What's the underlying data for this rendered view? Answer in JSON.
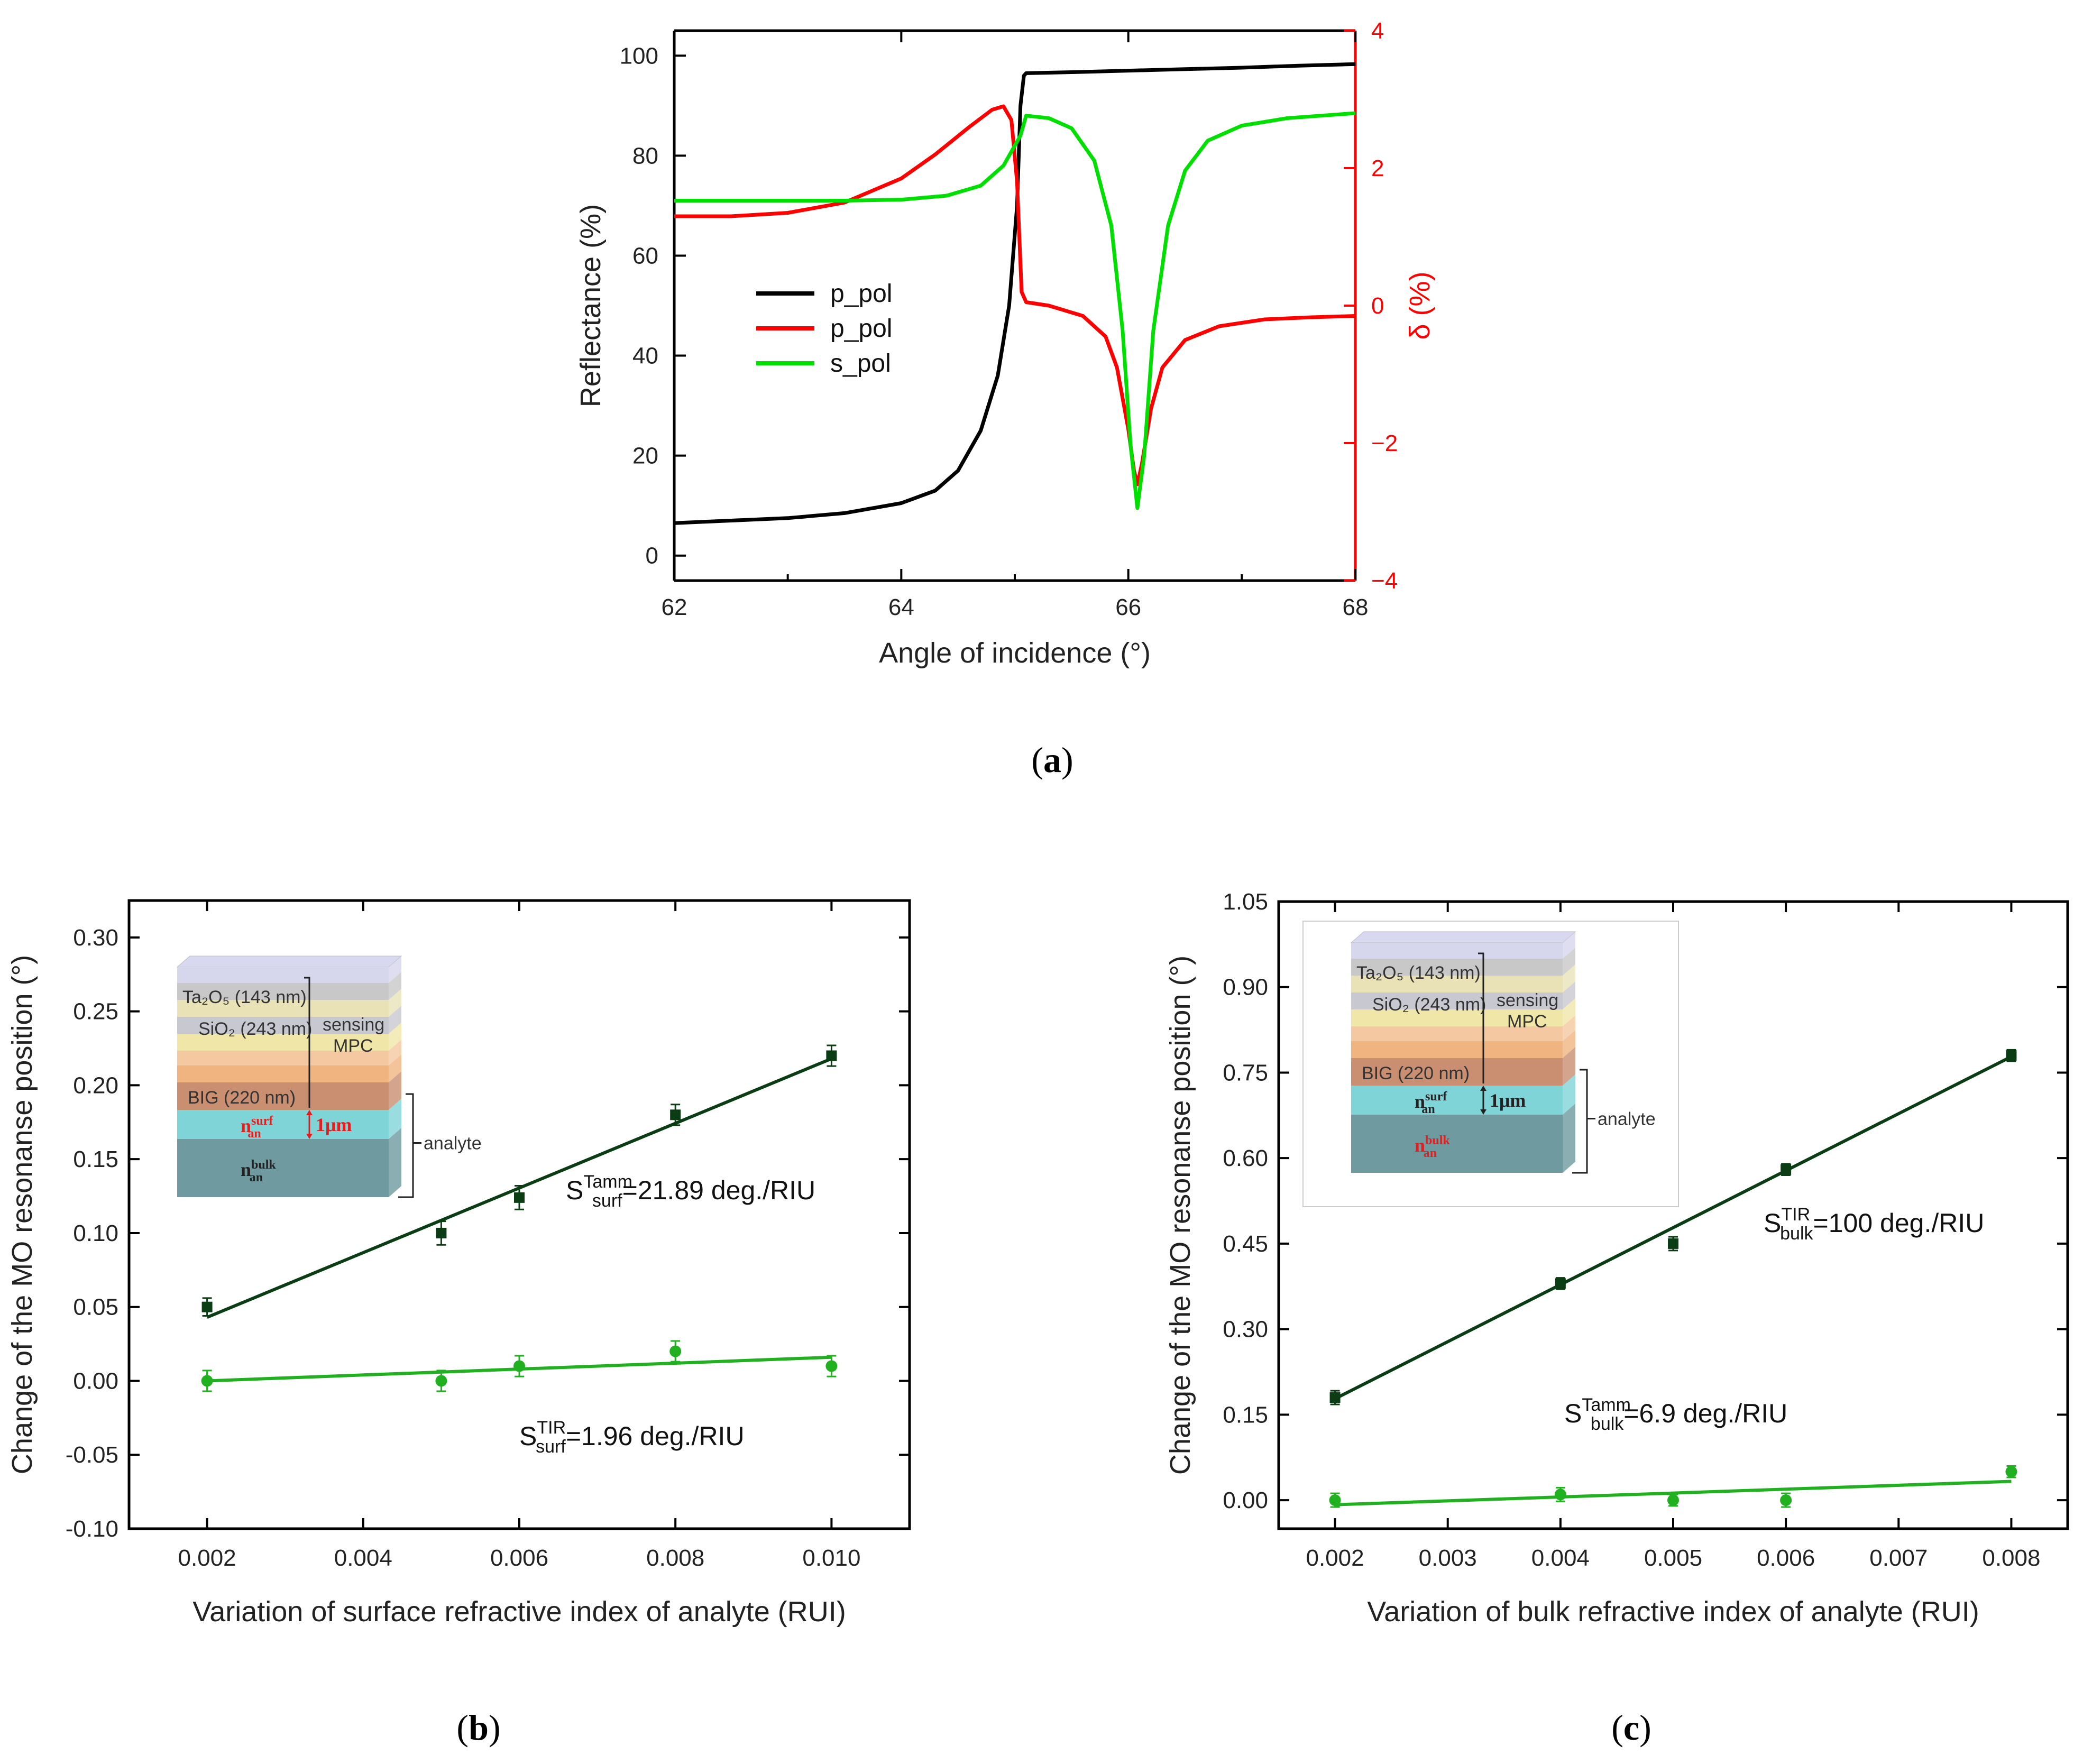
{
  "chart_data": [
    {
      "id": "a",
      "type": "line",
      "caption": "a",
      "xlabel": "Angle of incidence (°)",
      "ylabel": "Reflectance (%)",
      "y2label": "δ (%)",
      "xlim": [
        62,
        68
      ],
      "ylim": [
        -5,
        105
      ],
      "y2lim": [
        -4,
        4
      ],
      "xticks": [
        62,
        64,
        66,
        68
      ],
      "yticks": [
        0,
        20,
        40,
        60,
        80,
        100
      ],
      "y2ticks": [
        -4,
        -2,
        0,
        2,
        4
      ],
      "legend": [
        {
          "label": "p_pol",
          "color": "#000000"
        },
        {
          "label": "p_pol",
          "color": "#ff0000"
        },
        {
          "label": "s_pol",
          "color": "#00e000"
        }
      ],
      "series": [
        {
          "name": "p_pol",
          "axis": "left",
          "color": "#000000",
          "x": [
            62,
            62.5,
            63,
            63.5,
            64,
            64.3,
            64.5,
            64.7,
            64.85,
            64.95,
            65.02,
            65.05,
            65.08,
            65.1,
            65.5,
            66,
            66.5,
            67,
            67.5,
            68
          ],
          "y": [
            6.5,
            7,
            7.5,
            8.5,
            10.5,
            13,
            17,
            25,
            36,
            50,
            70,
            90,
            96,
            96.5,
            96.7,
            97,
            97.3,
            97.6,
            98,
            98.3
          ]
        },
        {
          "name": "p_pol",
          "axis": "right",
          "color": "#ff0000",
          "x": [
            62,
            62.5,
            63,
            63.5,
            64,
            64.3,
            64.6,
            64.8,
            64.9,
            64.97,
            65.02,
            65.06,
            65.1,
            65.3,
            65.6,
            65.8,
            65.9,
            66,
            66.05,
            66.08,
            66.12,
            66.2,
            66.3,
            66.5,
            66.8,
            67.2,
            67.6,
            68
          ],
          "y": [
            1.3,
            1.3,
            1.35,
            1.5,
            1.85,
            2.2,
            2.6,
            2.85,
            2.9,
            2.7,
            1.8,
            0.2,
            0.05,
            0.0,
            -0.15,
            -0.45,
            -0.9,
            -1.8,
            -2.4,
            -2.6,
            -2.3,
            -1.5,
            -0.9,
            -0.5,
            -0.3,
            -0.2,
            -0.17,
            -0.15
          ]
        },
        {
          "name": "s_pol",
          "axis": "left",
          "color": "#00e000",
          "x": [
            62,
            62.5,
            63,
            63.5,
            64,
            64.4,
            64.7,
            64.9,
            65.05,
            65.1,
            65.3,
            65.5,
            65.7,
            65.85,
            65.95,
            66.02,
            66.08,
            66.14,
            66.22,
            66.35,
            66.5,
            66.7,
            67,
            67.4,
            68
          ],
          "y": [
            71,
            71,
            71,
            71,
            71.2,
            72,
            74,
            78,
            84,
            88,
            87.5,
            85.5,
            79,
            66,
            45,
            22,
            9.5,
            20,
            45,
            66,
            77,
            83,
            86,
            87.5,
            88.5
          ]
        }
      ]
    },
    {
      "id": "b",
      "type": "scatter",
      "caption": "b",
      "xlabel": "Variation of surface refractive index of analyte (RUI)",
      "ylabel": "Change of the MO resonanse position (°)",
      "xlim": [
        0.001,
        0.011
      ],
      "ylim": [
        -0.1,
        0.325
      ],
      "xticks": [
        "0.002",
        "0.004",
        "0.006",
        "0.008",
        "0.010"
      ],
      "yticks": [
        "-0.10",
        "-0.05",
        "0.00",
        "0.05",
        "0.10",
        "0.15",
        "0.20",
        "0.25",
        "0.30"
      ],
      "series": [
        {
          "name": "Tamm",
          "color": "#0b3d14",
          "marker": "square",
          "x": [
            0.002,
            0.005,
            0.006,
            0.008,
            0.01
          ],
          "y": [
            0.05,
            0.1,
            0.124,
            0.18,
            0.22
          ],
          "err": [
            0.006,
            0.008,
            0.008,
            0.007,
            0.007
          ],
          "fit": [
            [
              0.002,
              0.043
            ],
            [
              0.01,
              0.218
            ]
          ]
        },
        {
          "name": "TIR",
          "color": "#20b020",
          "marker": "circle",
          "x": [
            0.002,
            0.005,
            0.006,
            0.008,
            0.01
          ],
          "y": [
            0.0,
            0.0,
            0.01,
            0.02,
            0.01
          ],
          "err": [
            0.007,
            0.007,
            0.007,
            0.007,
            0.007
          ],
          "fit": [
            [
              0.002,
              0.0
            ],
            [
              0.01,
              0.016
            ]
          ]
        }
      ],
      "annotations": [
        {
          "main": "S",
          "sub": "surf",
          "sup": "Tamm",
          "rest": "=21.89 deg./RIU"
        },
        {
          "main": "S",
          "sub": "surf",
          "sup": "TIR",
          "rest": "=1.96 deg./RIU"
        }
      ],
      "inset": {
        "layer1": "Ta₂O₅ (143 nm)",
        "layer2": "SiO₂ (243 nm)",
        "layer3": "BIG (220 nm)",
        "sensing": "sensing",
        "mpc": "MPC",
        "analyte": "analyte",
        "thickness": "1μm",
        "n_surf": "n",
        "n_surf_sup": "surf",
        "n_surf_sub": "an",
        "n_bulk": "n",
        "n_bulk_sup": "bulk",
        "n_bulk_sub": "an"
      }
    },
    {
      "id": "c",
      "type": "scatter",
      "caption": "c",
      "xlabel": "Variation of bulk refractive index of analyte (RUI)",
      "ylabel": "Change of the MO resonanse position (°)",
      "xlim": [
        0.0015,
        0.0085
      ],
      "ylim": [
        -0.05,
        1.05
      ],
      "xticks": [
        "0.002",
        "0.003",
        "0.004",
        "0.005",
        "0.006",
        "0.007",
        "0.008"
      ],
      "yticks": [
        "0.00",
        "0.15",
        "0.30",
        "0.45",
        "0.60",
        "0.75",
        "0.90",
        "1.05"
      ],
      "series": [
        {
          "name": "TIR",
          "color": "#0b3d14",
          "marker": "square",
          "x": [
            0.002,
            0.004,
            0.005,
            0.006,
            0.008
          ],
          "y": [
            0.18,
            0.38,
            0.45,
            0.58,
            0.78
          ],
          "err": [
            0.012,
            0.01,
            0.012,
            0.01,
            0.01
          ],
          "fit": [
            [
              0.002,
              0.178
            ],
            [
              0.008,
              0.778
            ]
          ]
        },
        {
          "name": "Tamm",
          "color": "#20b020",
          "marker": "circle",
          "x": [
            0.002,
            0.004,
            0.005,
            0.006,
            0.008
          ],
          "y": [
            0.0,
            0.01,
            0.0,
            0.0,
            0.05
          ],
          "err": [
            0.012,
            0.012,
            0.01,
            0.012,
            0.01
          ],
          "fit": [
            [
              0.002,
              -0.008
            ],
            [
              0.008,
              0.033
            ]
          ]
        }
      ],
      "annotations": [
        {
          "main": "S",
          "sub": "bulk",
          "sup": "TIR",
          "rest": "=100 deg./RIU"
        },
        {
          "main": "S",
          "sub": "bulk",
          "sup": "Tamm",
          "rest": "=6.9 deg./RIU"
        }
      ],
      "inset": {
        "layer1": "Ta₂O₅ (143 nm)",
        "layer2": "SiO₂ (243 nm)",
        "layer3": "BIG (220 nm)",
        "sensing": "sensing",
        "mpc": "MPC",
        "analyte": "analyte",
        "thickness": "1μm",
        "n_surf": "n",
        "n_surf_sup": "surf",
        "n_surf_sub": "an",
        "n_bulk": "n",
        "n_bulk_sup": "bulk",
        "n_bulk_sub": "an"
      }
    }
  ]
}
